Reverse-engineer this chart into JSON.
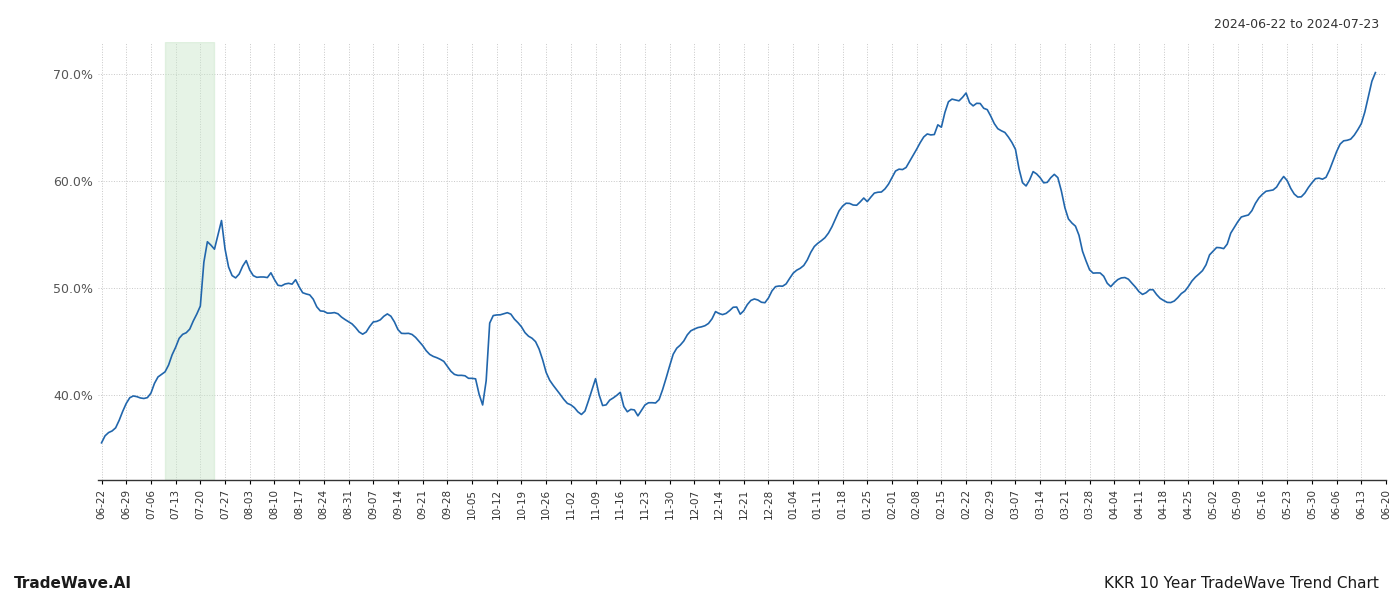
{
  "title_top_right": "2024-06-22 to 2024-07-23",
  "bottom_left": "TradeWave.AI",
  "bottom_right": "KKR 10 Year TradeWave Trend Chart",
  "line_color": "#2166ac",
  "line_width": 1.2,
  "background_color": "#ffffff",
  "grid_color": "#c8c8c8",
  "grid_style": "dotted",
  "highlight_start": "2023-07-10",
  "highlight_end": "2023-07-24",
  "highlight_color": "#c8e6c9",
  "highlight_alpha": 0.45,
  "ylim": [
    32,
    73
  ],
  "yticks": [
    40.0,
    50.0,
    60.0,
    70.0
  ],
  "date_start": "2023-06-22",
  "date_end": "2024-06-17",
  "data_points": [
    [
      "2023-06-22",
      35.2
    ],
    [
      "2023-06-23",
      35.8
    ],
    [
      "2023-06-26",
      36.5
    ],
    [
      "2023-06-27",
      37.2
    ],
    [
      "2023-06-28",
      38.0
    ],
    [
      "2023-06-29",
      38.8
    ],
    [
      "2023-06-30",
      39.5
    ],
    [
      "2023-07-03",
      40.0
    ],
    [
      "2023-07-05",
      40.5
    ],
    [
      "2023-07-06",
      41.0
    ],
    [
      "2023-07-07",
      41.8
    ],
    [
      "2023-07-10",
      42.5
    ],
    [
      "2023-07-11",
      43.0
    ],
    [
      "2023-07-12",
      43.8
    ],
    [
      "2023-07-13",
      44.5
    ],
    [
      "2023-07-14",
      45.5
    ],
    [
      "2023-07-17",
      46.5
    ],
    [
      "2023-07-18",
      47.2
    ],
    [
      "2023-07-19",
      47.8
    ],
    [
      "2023-07-20",
      48.5
    ],
    [
      "2023-07-21",
      52.5
    ],
    [
      "2023-07-24",
      53.5
    ],
    [
      "2023-07-25",
      55.0
    ],
    [
      "2023-07-26",
      56.5
    ],
    [
      "2023-07-27",
      54.0
    ],
    [
      "2023-07-28",
      52.5
    ],
    [
      "2023-07-31",
      51.5
    ],
    [
      "2023-08-01",
      52.0
    ],
    [
      "2023-08-02",
      52.5
    ],
    [
      "2023-08-03",
      51.8
    ],
    [
      "2023-08-04",
      51.5
    ],
    [
      "2023-08-07",
      51.2
    ],
    [
      "2023-08-08",
      51.0
    ],
    [
      "2023-08-09",
      51.5
    ],
    [
      "2023-08-10",
      51.0
    ],
    [
      "2023-08-11",
      50.5
    ],
    [
      "2023-08-14",
      50.2
    ],
    [
      "2023-08-15",
      50.0
    ],
    [
      "2023-08-16",
      50.5
    ],
    [
      "2023-08-17",
      50.0
    ],
    [
      "2023-08-18",
      49.5
    ],
    [
      "2023-08-21",
      49.0
    ],
    [
      "2023-08-22",
      48.5
    ],
    [
      "2023-08-23",
      48.2
    ],
    [
      "2023-08-24",
      48.0
    ],
    [
      "2023-08-25",
      47.5
    ],
    [
      "2023-08-28",
      47.2
    ],
    [
      "2023-08-29",
      47.0
    ],
    [
      "2023-08-30",
      46.8
    ],
    [
      "2023-08-31",
      46.5
    ],
    [
      "2023-09-01",
      46.2
    ],
    [
      "2023-09-05",
      46.0
    ],
    [
      "2023-09-06",
      46.5
    ],
    [
      "2023-09-07",
      47.0
    ],
    [
      "2023-09-08",
      47.2
    ],
    [
      "2023-09-11",
      47.5
    ],
    [
      "2023-09-12",
      47.2
    ],
    [
      "2023-09-13",
      46.8
    ],
    [
      "2023-09-14",
      46.2
    ],
    [
      "2023-09-15",
      45.8
    ],
    [
      "2023-09-18",
      45.5
    ],
    [
      "2023-09-19",
      45.2
    ],
    [
      "2023-09-20",
      44.8
    ],
    [
      "2023-09-21",
      44.5
    ],
    [
      "2023-09-22",
      44.2
    ],
    [
      "2023-09-25",
      43.8
    ],
    [
      "2023-09-26",
      43.5
    ],
    [
      "2023-09-27",
      43.2
    ],
    [
      "2023-09-28",
      42.8
    ],
    [
      "2023-09-29",
      42.5
    ],
    [
      "2023-10-02",
      42.2
    ],
    [
      "2023-10-03",
      42.0
    ],
    [
      "2023-10-04",
      41.5
    ],
    [
      "2023-10-05",
      41.2
    ],
    [
      "2023-10-06",
      41.0
    ],
    [
      "2023-10-09",
      41.5
    ],
    [
      "2023-10-10",
      47.0
    ],
    [
      "2023-10-11",
      47.5
    ],
    [
      "2023-10-12",
      47.2
    ],
    [
      "2023-10-13",
      47.0
    ],
    [
      "2023-10-16",
      47.5
    ],
    [
      "2023-10-17",
      47.0
    ],
    [
      "2023-10-18",
      46.5
    ],
    [
      "2023-10-19",
      46.0
    ],
    [
      "2023-10-20",
      45.5
    ],
    [
      "2023-10-23",
      44.8
    ],
    [
      "2023-10-24",
      44.0
    ],
    [
      "2023-10-25",
      43.0
    ],
    [
      "2023-10-26",
      42.0
    ],
    [
      "2023-10-27",
      41.5
    ],
    [
      "2023-10-30",
      40.5
    ],
    [
      "2023-10-31",
      40.0
    ],
    [
      "2023-11-01",
      39.5
    ],
    [
      "2023-11-02",
      39.2
    ],
    [
      "2023-11-03",
      38.8
    ],
    [
      "2023-11-06",
      38.5
    ],
    [
      "2023-11-07",
      39.5
    ],
    [
      "2023-11-08",
      40.5
    ],
    [
      "2023-11-09",
      41.5
    ],
    [
      "2023-11-10",
      40.0
    ],
    [
      "2023-11-13",
      39.5
    ],
    [
      "2023-11-14",
      39.8
    ],
    [
      "2023-11-15",
      40.2
    ],
    [
      "2023-11-16",
      40.5
    ],
    [
      "2023-11-17",
      39.0
    ],
    [
      "2023-11-20",
      38.5
    ],
    [
      "2023-11-21",
      38.0
    ],
    [
      "2023-11-22",
      38.5
    ],
    [
      "2023-11-24",
      39.0
    ],
    [
      "2023-11-27",
      39.5
    ],
    [
      "2023-11-28",
      40.5
    ],
    [
      "2023-11-29",
      41.5
    ],
    [
      "2023-11-30",
      42.5
    ],
    [
      "2023-12-01",
      43.5
    ],
    [
      "2023-12-04",
      44.5
    ],
    [
      "2023-12-05",
      45.0
    ],
    [
      "2023-12-06",
      45.5
    ],
    [
      "2023-12-07",
      46.0
    ],
    [
      "2023-12-08",
      46.5
    ],
    [
      "2023-12-11",
      46.8
    ],
    [
      "2023-12-12",
      47.0
    ],
    [
      "2023-12-13",
      47.5
    ],
    [
      "2023-12-14",
      47.2
    ],
    [
      "2023-12-15",
      47.0
    ],
    [
      "2023-12-18",
      47.5
    ],
    [
      "2023-12-19",
      47.8
    ],
    [
      "2023-12-20",
      47.5
    ],
    [
      "2023-12-21",
      48.0
    ],
    [
      "2023-12-22",
      48.5
    ],
    [
      "2023-12-26",
      48.8
    ],
    [
      "2023-12-27",
      49.0
    ],
    [
      "2023-12-28",
      49.5
    ],
    [
      "2023-12-29",
      50.0
    ],
    [
      "2024-01-02",
      50.5
    ],
    [
      "2024-01-03",
      51.0
    ],
    [
      "2024-01-04",
      51.5
    ],
    [
      "2024-01-05",
      51.8
    ],
    [
      "2024-01-08",
      52.5
    ],
    [
      "2024-01-09",
      53.0
    ],
    [
      "2024-01-10",
      53.5
    ],
    [
      "2024-01-11",
      54.0
    ],
    [
      "2024-01-12",
      54.5
    ],
    [
      "2024-01-16",
      55.5
    ],
    [
      "2024-01-17",
      56.0
    ],
    [
      "2024-01-18",
      56.5
    ],
    [
      "2024-01-19",
      57.0
    ],
    [
      "2024-01-22",
      57.5
    ],
    [
      "2024-01-23",
      58.0
    ],
    [
      "2024-01-24",
      58.5
    ],
    [
      "2024-01-25",
      58.2
    ],
    [
      "2024-01-26",
      58.5
    ],
    [
      "2024-01-29",
      59.0
    ],
    [
      "2024-01-30",
      59.5
    ],
    [
      "2024-01-31",
      60.0
    ],
    [
      "2024-02-01",
      60.5
    ],
    [
      "2024-02-02",
      61.0
    ],
    [
      "2024-02-05",
      61.5
    ],
    [
      "2024-02-06",
      62.0
    ],
    [
      "2024-02-07",
      62.5
    ],
    [
      "2024-02-08",
      63.0
    ],
    [
      "2024-02-09",
      63.5
    ],
    [
      "2024-02-12",
      64.2
    ],
    [
      "2024-02-13",
      64.5
    ],
    [
      "2024-02-14",
      65.5
    ],
    [
      "2024-02-15",
      65.2
    ],
    [
      "2024-02-16",
      66.5
    ],
    [
      "2024-02-20",
      67.5
    ],
    [
      "2024-02-21",
      68.0
    ],
    [
      "2024-02-22",
      68.5
    ],
    [
      "2024-02-23",
      67.5
    ],
    [
      "2024-02-26",
      67.0
    ],
    [
      "2024-02-27",
      66.5
    ],
    [
      "2024-02-28",
      66.2
    ],
    [
      "2024-02-29",
      65.5
    ],
    [
      "2024-03-01",
      65.0
    ],
    [
      "2024-03-04",
      64.5
    ],
    [
      "2024-03-05",
      64.0
    ],
    [
      "2024-03-06",
      63.5
    ],
    [
      "2024-03-07",
      63.0
    ],
    [
      "2024-03-08",
      61.5
    ],
    [
      "2024-03-11",
      61.0
    ],
    [
      "2024-03-12",
      61.5
    ],
    [
      "2024-03-13",
      61.0
    ],
    [
      "2024-03-14",
      60.5
    ],
    [
      "2024-03-15",
      60.0
    ],
    [
      "2024-03-18",
      60.5
    ],
    [
      "2024-03-19",
      60.2
    ],
    [
      "2024-03-20",
      59.0
    ],
    [
      "2024-03-21",
      57.5
    ],
    [
      "2024-03-22",
      56.5
    ],
    [
      "2024-03-25",
      55.0
    ],
    [
      "2024-03-26",
      53.5
    ],
    [
      "2024-03-27",
      52.5
    ],
    [
      "2024-03-28",
      51.5
    ],
    [
      "2024-04-01",
      51.0
    ],
    [
      "2024-04-02",
      50.5
    ],
    [
      "2024-04-03",
      50.2
    ],
    [
      "2024-04-04",
      50.5
    ],
    [
      "2024-04-05",
      50.8
    ],
    [
      "2024-04-08",
      51.0
    ],
    [
      "2024-04-09",
      50.5
    ],
    [
      "2024-04-10",
      50.0
    ],
    [
      "2024-04-11",
      49.5
    ],
    [
      "2024-04-12",
      49.2
    ],
    [
      "2024-04-15",
      49.5
    ],
    [
      "2024-04-16",
      49.2
    ],
    [
      "2024-04-17",
      49.0
    ],
    [
      "2024-04-18",
      48.8
    ],
    [
      "2024-04-19",
      48.5
    ],
    [
      "2024-04-22",
      48.8
    ],
    [
      "2024-04-23",
      49.2
    ],
    [
      "2024-04-24",
      49.5
    ],
    [
      "2024-04-25",
      50.0
    ],
    [
      "2024-04-26",
      50.5
    ],
    [
      "2024-04-29",
      51.0
    ],
    [
      "2024-04-30",
      51.5
    ],
    [
      "2024-05-01",
      52.5
    ],
    [
      "2024-05-02",
      53.0
    ],
    [
      "2024-05-03",
      53.5
    ],
    [
      "2024-05-06",
      54.0
    ],
    [
      "2024-05-07",
      55.0
    ],
    [
      "2024-05-08",
      55.5
    ],
    [
      "2024-05-09",
      56.0
    ],
    [
      "2024-05-10",
      56.5
    ],
    [
      "2024-05-13",
      57.0
    ],
    [
      "2024-05-14",
      57.5
    ],
    [
      "2024-05-15",
      58.0
    ],
    [
      "2024-05-16",
      58.5
    ],
    [
      "2024-05-17",
      59.0
    ],
    [
      "2024-05-20",
      59.5
    ],
    [
      "2024-05-21",
      60.0
    ],
    [
      "2024-05-22",
      60.5
    ],
    [
      "2024-05-23",
      60.2
    ],
    [
      "2024-05-24",
      59.5
    ],
    [
      "2024-05-28",
      59.0
    ],
    [
      "2024-05-29",
      59.5
    ],
    [
      "2024-05-30",
      60.0
    ],
    [
      "2024-05-31",
      60.5
    ],
    [
      "2024-06-03",
      61.0
    ],
    [
      "2024-06-04",
      61.5
    ],
    [
      "2024-06-05",
      62.0
    ],
    [
      "2024-06-06",
      62.5
    ],
    [
      "2024-06-07",
      63.0
    ],
    [
      "2024-06-10",
      64.0
    ],
    [
      "2024-06-11",
      64.5
    ],
    [
      "2024-06-12",
      65.0
    ],
    [
      "2024-06-13",
      65.5
    ],
    [
      "2024-06-14",
      66.5
    ],
    [
      "2024-06-17",
      69.5
    ]
  ]
}
